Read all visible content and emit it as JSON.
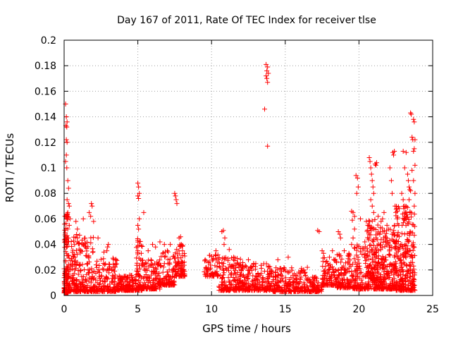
{
  "chart_data": {
    "type": "scatter",
    "title": "Day 167 of 2011, Rate Of TEC Index for receiver tlse",
    "xlabel": "GPS time / hours",
    "ylabel": "ROTI / TECUs",
    "xlim": [
      0,
      25
    ],
    "ylim": [
      0,
      0.2
    ],
    "x_ticks": [
      0,
      5,
      10,
      15,
      20,
      25
    ],
    "y_ticks": [
      0,
      0.02,
      0.04,
      0.06,
      0.08,
      0.1,
      0.12,
      0.14,
      0.16,
      0.18,
      0.2
    ],
    "x_tick_labels": [
      "0",
      "5",
      "10",
      "15",
      "20",
      "25"
    ],
    "y_tick_labels": [
      "0",
      "0.02",
      "0.04",
      "0.06",
      "0.08",
      "0.1",
      "0.12",
      "0.14",
      "0.16",
      "0.18",
      "0.2"
    ],
    "grid": true,
    "marker": "plus",
    "color": "#ff0000",
    "series": [
      {
        "points": [
          [
            0.1,
            0.15
          ],
          [
            0.15,
            0.14
          ],
          [
            0.2,
            0.136
          ],
          [
            0.12,
            0.133
          ],
          [
            0.18,
            0.132
          ],
          [
            0.15,
            0.122
          ],
          [
            0.2,
            0.12
          ],
          [
            0.15,
            0.11
          ],
          [
            0.1,
            0.105
          ],
          [
            0.18,
            0.1
          ],
          [
            0.25,
            0.09
          ],
          [
            0.3,
            0.084
          ],
          [
            0.2,
            0.075
          ],
          [
            0.3,
            0.072
          ],
          [
            0.35,
            0.07
          ],
          [
            0.25,
            0.065
          ],
          [
            0.4,
            0.06
          ],
          [
            0.35,
            0.055
          ],
          [
            0.8,
            0.058
          ],
          [
            0.9,
            0.052
          ],
          [
            1.3,
            0.06
          ],
          [
            1.7,
            0.065
          ],
          [
            1.85,
            0.072
          ],
          [
            1.9,
            0.07
          ],
          [
            1.8,
            0.062
          ],
          [
            2.0,
            0.058
          ],
          [
            2.3,
            0.045
          ],
          [
            2.9,
            0.035
          ],
          [
            3.0,
            0.04
          ],
          [
            2.95,
            0.038
          ],
          [
            2.7,
            0.034
          ],
          [
            3.5,
            0.028
          ],
          [
            5.0,
            0.088
          ],
          [
            5.05,
            0.085
          ],
          [
            5.1,
            0.08
          ],
          [
            5.0,
            0.078
          ],
          [
            5.05,
            0.076
          ],
          [
            5.1,
            0.06
          ],
          [
            5.0,
            0.055
          ],
          [
            5.05,
            0.052
          ],
          [
            5.0,
            0.035
          ],
          [
            5.4,
            0.065
          ],
          [
            5.7,
            0.035
          ],
          [
            6.0,
            0.04
          ],
          [
            6.2,
            0.038
          ],
          [
            6.5,
            0.042
          ],
          [
            6.8,
            0.04
          ],
          [
            7.0,
            0.035
          ],
          [
            7.2,
            0.04
          ],
          [
            7.5,
            0.08
          ],
          [
            7.55,
            0.078
          ],
          [
            7.6,
            0.075
          ],
          [
            7.65,
            0.072
          ],
          [
            7.8,
            0.045
          ],
          [
            7.9,
            0.046
          ],
          [
            7.95,
            0.04
          ],
          [
            10.3,
            0.035
          ],
          [
            10.5,
            0.028
          ],
          [
            10.7,
            0.05
          ],
          [
            10.8,
            0.051
          ],
          [
            10.9,
            0.045
          ],
          [
            10.85,
            0.04
          ],
          [
            11.2,
            0.036
          ],
          [
            11.5,
            0.03
          ],
          [
            12.5,
            0.028
          ],
          [
            13.0,
            0.025
          ],
          [
            13.7,
            0.181
          ],
          [
            13.8,
            0.179
          ],
          [
            13.75,
            0.176
          ],
          [
            13.85,
            0.174
          ],
          [
            13.7,
            0.172
          ],
          [
            13.75,
            0.17
          ],
          [
            13.8,
            0.167
          ],
          [
            13.6,
            0.146
          ],
          [
            13.8,
            0.117
          ],
          [
            14.5,
            0.028
          ],
          [
            15.2,
            0.03
          ],
          [
            16.5,
            0.022
          ],
          [
            17.2,
            0.051
          ],
          [
            17.3,
            0.05
          ],
          [
            17.5,
            0.035
          ],
          [
            17.6,
            0.033
          ],
          [
            18.0,
            0.03
          ],
          [
            18.2,
            0.035
          ],
          [
            18.6,
            0.05
          ],
          [
            18.7,
            0.048
          ],
          [
            18.75,
            0.045
          ],
          [
            19.0,
            0.035
          ],
          [
            19.5,
            0.04
          ],
          [
            19.5,
            0.066
          ],
          [
            19.6,
            0.065
          ],
          [
            19.7,
            0.062
          ],
          [
            19.55,
            0.059
          ],
          [
            19.7,
            0.052
          ],
          [
            19.6,
            0.045
          ],
          [
            19.8,
            0.094
          ],
          [
            19.9,
            0.092
          ],
          [
            19.85,
            0.08
          ],
          [
            19.95,
            0.085
          ],
          [
            20.1,
            0.06
          ],
          [
            20.4,
            0.042
          ],
          [
            20.5,
            0.058
          ],
          [
            20.6,
            0.055
          ],
          [
            20.7,
            0.108
          ],
          [
            20.75,
            0.105
          ],
          [
            20.8,
            0.1
          ],
          [
            20.85,
            0.095
          ],
          [
            20.9,
            0.09
          ],
          [
            20.95,
            0.085
          ],
          [
            21.0,
            0.08
          ],
          [
            20.8,
            0.075
          ],
          [
            20.9,
            0.07
          ],
          [
            21.0,
            0.065
          ],
          [
            21.1,
            0.103
          ],
          [
            21.15,
            0.102
          ],
          [
            21.2,
            0.104
          ],
          [
            21.3,
            0.062
          ],
          [
            21.5,
            0.058
          ],
          [
            21.6,
            0.06
          ],
          [
            21.7,
            0.065
          ],
          [
            21.9,
            0.055
          ],
          [
            22.0,
            0.052
          ],
          [
            22.1,
            0.1
          ],
          [
            22.2,
            0.09
          ],
          [
            22.3,
            0.112
          ],
          [
            22.35,
            0.11
          ],
          [
            22.4,
            0.113
          ],
          [
            22.25,
            0.08
          ],
          [
            22.45,
            0.07
          ],
          [
            22.5,
            0.065
          ],
          [
            22.6,
            0.06
          ],
          [
            22.7,
            0.055
          ],
          [
            22.9,
            0.08
          ],
          [
            23.0,
            0.075
          ],
          [
            23.1,
            0.07
          ],
          [
            23.05,
            0.068
          ],
          [
            23.2,
            0.06
          ],
          [
            23.0,
            0.113
          ],
          [
            23.1,
            0.1
          ],
          [
            23.2,
            0.112
          ],
          [
            23.3,
            0.095
          ],
          [
            23.35,
            0.09
          ],
          [
            23.4,
            0.085
          ],
          [
            23.45,
            0.083
          ],
          [
            23.5,
            0.082
          ],
          [
            23.4,
            0.075
          ],
          [
            23.5,
            0.143
          ],
          [
            23.55,
            0.142
          ],
          [
            23.6,
            0.124
          ],
          [
            23.65,
            0.122
          ],
          [
            23.7,
            0.138
          ],
          [
            23.75,
            0.136
          ],
          [
            23.8,
            0.122
          ],
          [
            23.75,
            0.115
          ],
          [
            23.7,
            0.113
          ],
          [
            23.8,
            0.102
          ],
          [
            23.6,
            0.098
          ],
          [
            23.7,
            0.09
          ],
          [
            23.8,
            0.08
          ],
          [
            23.75,
            0.07
          ]
        ],
        "dense_bands": [
          {
            "x": [
              0.0,
              0.3
            ],
            "y": [
              0.002,
              0.065
            ],
            "n": 140
          },
          {
            "x": [
              0.3,
              2.0
            ],
            "y": [
              0.003,
              0.048
            ],
            "n": 240
          },
          {
            "x": [
              2.0,
              3.6
            ],
            "y": [
              0.003,
              0.03
            ],
            "n": 150
          },
          {
            "x": [
              3.6,
              4.9
            ],
            "y": [
              0.004,
              0.016
            ],
            "n": 140
          },
          {
            "x": [
              4.9,
              5.3
            ],
            "y": [
              0.004,
              0.045
            ],
            "n": 60
          },
          {
            "x": [
              5.3,
              6.5
            ],
            "y": [
              0.005,
              0.028
            ],
            "n": 130
          },
          {
            "x": [
              6.5,
              7.5
            ],
            "y": [
              0.008,
              0.035
            ],
            "n": 110
          },
          {
            "x": [
              7.5,
              8.2
            ],
            "y": [
              0.015,
              0.04
            ],
            "n": 80
          },
          {
            "x": [
              9.5,
              10.5
            ],
            "y": [
              0.015,
              0.032
            ],
            "n": 60
          },
          {
            "x": [
              10.5,
              12.0
            ],
            "y": [
              0.004,
              0.03
            ],
            "n": 170
          },
          {
            "x": [
              12.0,
              14.0
            ],
            "y": [
              0.004,
              0.026
            ],
            "n": 190
          },
          {
            "x": [
              14.0,
              16.5
            ],
            "y": [
              0.003,
              0.022
            ],
            "n": 220
          },
          {
            "x": [
              16.5,
              17.5
            ],
            "y": [
              0.003,
              0.015
            ],
            "n": 90
          },
          {
            "x": [
              17.5,
              18.5
            ],
            "y": [
              0.008,
              0.03
            ],
            "n": 100
          },
          {
            "x": [
              18.5,
              19.5
            ],
            "y": [
              0.006,
              0.035
            ],
            "n": 110
          },
          {
            "x": [
              19.5,
              20.5
            ],
            "y": [
              0.005,
              0.04
            ],
            "n": 120
          },
          {
            "x": [
              20.5,
              21.3
            ],
            "y": [
              0.005,
              0.06
            ],
            "n": 170
          },
          {
            "x": [
              21.3,
              22.5
            ],
            "y": [
              0.005,
              0.055
            ],
            "n": 220
          },
          {
            "x": [
              22.5,
              23.8
            ],
            "y": [
              0.004,
              0.07
            ],
            "n": 280
          }
        ]
      }
    ]
  }
}
